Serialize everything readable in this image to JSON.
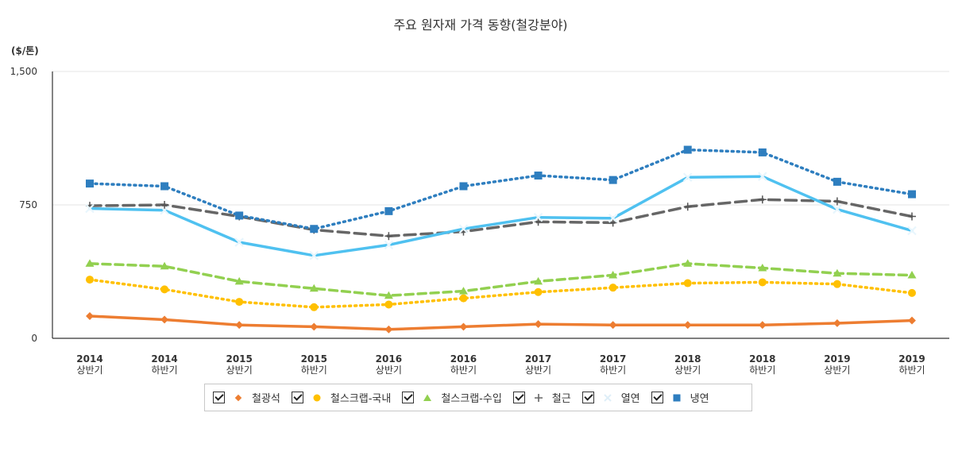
{
  "chart_data": {
    "type": "line",
    "title": "주요 원자재 가격 동향(철강분야)",
    "unit_label": "($/톤)",
    "ylim": [
      0,
      1500
    ],
    "yticks": [
      "0",
      "750",
      "1,500"
    ],
    "categories": [
      [
        "2014",
        "상반기"
      ],
      [
        "2014",
        "하반기"
      ],
      [
        "2015",
        "상반기"
      ],
      [
        "2015",
        "하반기"
      ],
      [
        "2016",
        "상반기"
      ],
      [
        "2016",
        "하반기"
      ],
      [
        "2017",
        "상반기"
      ],
      [
        "2017",
        "하반기"
      ],
      [
        "2018",
        "상반기"
      ],
      [
        "2018",
        "하반기"
      ],
      [
        "2019",
        "상반기"
      ],
      [
        "2019",
        "하반기"
      ]
    ],
    "series": [
      {
        "name": "철광석",
        "color": "#ed7d31",
        "marker": "diamond",
        "dash": "solid",
        "values": [
          125,
          105,
          75,
          65,
          50,
          65,
          80,
          75,
          75,
          75,
          85,
          100
        ]
      },
      {
        "name": "철스크랩-국내",
        "color": "#ffc000",
        "marker": "circle",
        "dash": "dot",
        "values": [
          330,
          275,
          205,
          175,
          190,
          225,
          260,
          285,
          310,
          315,
          305,
          255
        ]
      },
      {
        "name": "철스크랩-수입",
        "color": "#92d050",
        "marker": "triangle",
        "dash": "dash",
        "values": [
          420,
          405,
          320,
          280,
          240,
          265,
          320,
          355,
          420,
          395,
          365,
          355
        ]
      },
      {
        "name": "철근",
        "color": "#666666",
        "marker": "plus",
        "dash": "longdash",
        "values": [
          745,
          750,
          685,
          610,
          575,
          600,
          655,
          650,
          740,
          780,
          770,
          685
        ]
      },
      {
        "name": "열연",
        "color": "#4fc1f0",
        "marker": "x",
        "dash": "solid",
        "values": [
          730,
          720,
          540,
          465,
          525,
          615,
          680,
          675,
          905,
          910,
          725,
          605
        ]
      },
      {
        "name": "냉연",
        "color": "#2e7ebf",
        "marker": "square",
        "dash": "dot",
        "values": [
          870,
          855,
          690,
          615,
          715,
          855,
          915,
          890,
          1060,
          1045,
          880,
          810
        ]
      }
    ],
    "grid": true,
    "legend_position": "bottom"
  },
  "legend": {
    "items": [
      {
        "label": "철광석"
      },
      {
        "label": "철스크랩-국내"
      },
      {
        "label": "철스크랩-수입"
      },
      {
        "label": "철근"
      },
      {
        "label": "열연"
      },
      {
        "label": "냉연"
      }
    ]
  }
}
